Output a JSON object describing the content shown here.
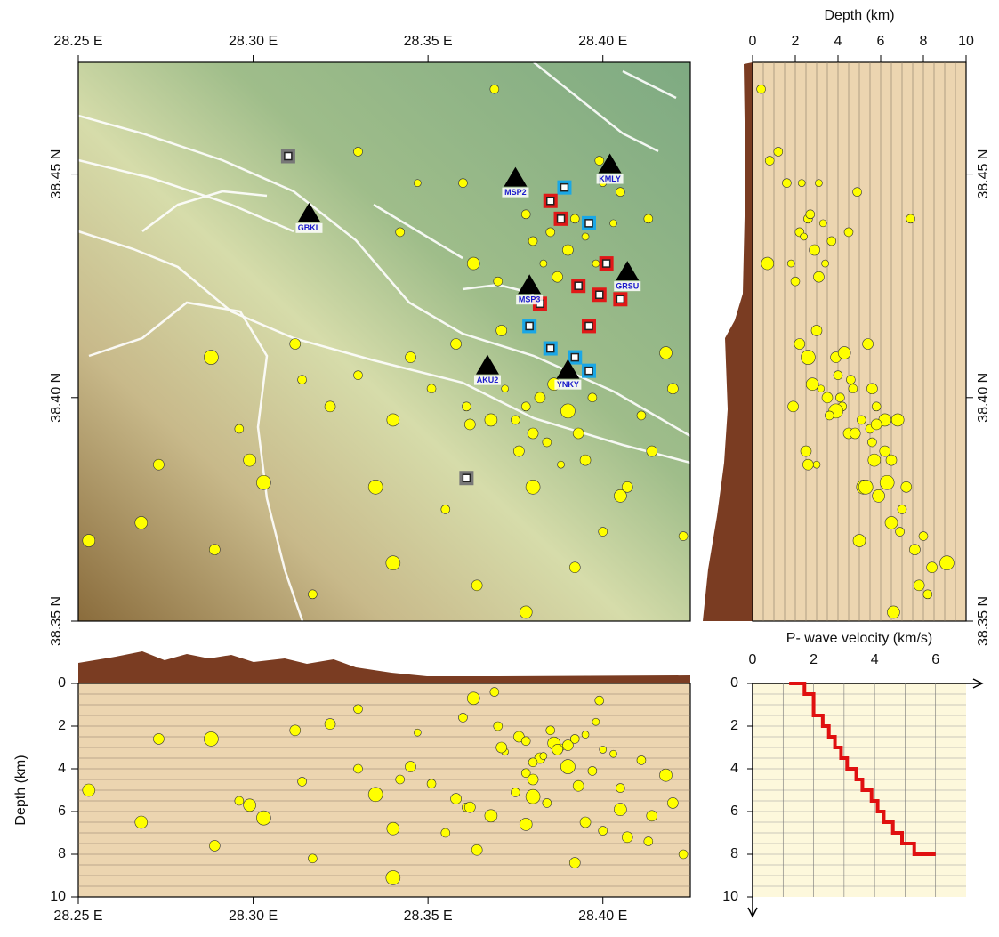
{
  "chart_data": [
    {
      "type": "map",
      "xlim": [
        28.25,
        28.425
      ],
      "ylim": [
        38.35,
        38.475
      ],
      "xticks": [
        {
          "value": 28.25,
          "label": "28.25 E"
        },
        {
          "value": 28.3,
          "label": "28.30 E"
        },
        {
          "value": 28.35,
          "label": "28.35 E"
        },
        {
          "value": 28.4,
          "label": "28.40 E"
        }
      ],
      "yticks": [
        {
          "value": 38.35,
          "label": "38.35 N"
        },
        {
          "value": 38.4,
          "label": "38.40 N"
        },
        {
          "value": 38.45,
          "label": "38.45 N"
        }
      ],
      "events": {
        "color": "#ffff00",
        "lon": [
          28.382,
          28.378,
          28.386,
          28.375,
          28.39,
          28.38,
          28.372,
          28.384,
          28.393,
          28.368,
          28.388,
          28.376,
          28.397,
          28.361,
          28.395,
          28.385,
          28.39,
          28.383,
          28.392,
          28.387,
          28.395,
          28.38,
          28.398,
          28.378,
          28.403,
          28.358,
          28.351,
          28.345,
          28.34,
          28.335,
          28.33,
          28.322,
          28.312,
          28.303,
          28.296,
          28.273,
          28.268,
          28.253,
          28.288,
          28.317,
          28.34,
          28.355,
          28.364,
          28.378,
          28.392,
          28.405,
          28.414,
          28.42,
          28.418,
          28.411,
          28.407,
          28.4,
          28.342,
          28.347,
          28.36,
          28.369,
          28.4,
          28.405,
          28.413,
          28.399,
          28.33,
          28.363,
          28.37,
          28.371,
          28.423,
          28.314,
          28.299,
          28.289,
          28.38,
          28.362
        ],
        "lat": [
          38.4,
          38.398,
          38.403,
          38.395,
          38.397,
          38.392,
          38.402,
          38.39,
          38.392,
          38.395,
          38.385,
          38.388,
          38.4,
          38.398,
          38.386,
          38.437,
          38.433,
          38.43,
          38.44,
          38.427,
          38.436,
          38.435,
          38.43,
          38.441,
          38.439,
          38.412,
          38.402,
          38.409,
          38.395,
          38.38,
          38.405,
          38.398,
          38.412,
          38.381,
          38.393,
          38.385,
          38.372,
          38.368,
          38.409,
          38.356,
          38.363,
          38.375,
          38.358,
          38.352,
          38.362,
          38.378,
          38.388,
          38.402,
          38.41,
          38.396,
          38.38,
          38.37,
          38.437,
          38.448,
          38.448,
          38.469,
          38.448,
          38.446,
          38.44,
          38.453,
          38.455,
          38.43,
          38.426,
          38.415,
          38.369,
          38.404,
          38.386,
          38.366,
          38.38,
          38.394
        ],
        "depth": [
          3.5,
          4.2,
          2.8,
          5.1,
          3.9,
          4.5,
          3.2,
          5.6,
          4.8,
          6.2,
          3.0,
          2.5,
          4.1,
          5.8,
          6.5,
          2.2,
          2.9,
          3.4,
          2.6,
          3.1,
          2.4,
          3.7,
          1.8,
          2.7,
          3.3,
          5.4,
          4.7,
          3.9,
          6.8,
          5.2,
          4.0,
          1.9,
          2.2,
          6.3,
          5.5,
          2.6,
          6.5,
          5.0,
          2.6,
          8.2,
          9.1,
          7.0,
          7.8,
          6.6,
          8.4,
          5.9,
          6.2,
          5.6,
          4.3,
          3.6,
          7.2,
          6.9,
          4.5,
          2.3,
          1.6,
          0.4,
          3.1,
          4.9,
          7.4,
          0.8,
          1.2,
          0.7,
          2.0,
          3.0,
          8.0,
          4.6,
          5.7,
          7.6,
          5.3,
          5.8
        ],
        "size": [
          6,
          5,
          7,
          5,
          8,
          6,
          4,
          5,
          6,
          7,
          4,
          6,
          5,
          5,
          6,
          5,
          6,
          4,
          5,
          6,
          4,
          5,
          4,
          5,
          4,
          6,
          5,
          6,
          7,
          8,
          5,
          6,
          6,
          8,
          5,
          6,
          7,
          7,
          8,
          5,
          8,
          5,
          6,
          7,
          6,
          7,
          6,
          6,
          7,
          5,
          6,
          5,
          5,
          4,
          5,
          5,
          4,
          5,
          5,
          5,
          5,
          7,
          5,
          6,
          5,
          5,
          7,
          6,
          8,
          6
        ]
      },
      "stations": {
        "names": [
          "MSP2",
          "KMLY",
          "GBKL",
          "MSP3",
          "GRSU",
          "AKU2",
          "YNKY"
        ],
        "lon": [
          28.375,
          28.402,
          28.316,
          28.379,
          28.407,
          28.367,
          28.39
        ],
        "lat": [
          38.449,
          38.452,
          38.441,
          38.425,
          38.428,
          38.407,
          38.406
        ]
      },
      "squares": [
        {
          "color": "#1aa7e6",
          "lon": [
            28.389,
            28.396,
            28.379,
            28.385,
            28.392,
            28.396
          ],
          "lat": [
            38.447,
            38.439,
            38.416,
            38.411,
            38.409,
            38.406
          ]
        },
        {
          "color": "#e01818",
          "lon": [
            28.385,
            28.388,
            28.401,
            28.393,
            28.399,
            28.405,
            28.396,
            28.382
          ],
          "lat": [
            38.444,
            38.44,
            38.43,
            38.425,
            38.423,
            38.422,
            38.416,
            38.421
          ]
        },
        {
          "color": "#777777",
          "lon": [
            28.31,
            28.361
          ],
          "lat": [
            38.454,
            38.382
          ]
        }
      ]
    },
    {
      "type": "section-lat",
      "title": "Depth (km)",
      "xlim": [
        0,
        10
      ],
      "xticks": [
        0,
        2,
        4,
        6,
        8,
        10
      ],
      "ylim": [
        38.35,
        38.475
      ],
      "yticks": [
        {
          "value": 38.35,
          "label": "38.35 N"
        },
        {
          "value": 38.4,
          "label": "38.40 N"
        },
        {
          "value": 38.45,
          "label": "38.45 N"
        }
      ],
      "grid": [
        0.5,
        1,
        1.5,
        2,
        2.5,
        3,
        3.5,
        4,
        4.5,
        5,
        5.5,
        6,
        6.5,
        7,
        7.5,
        8,
        8.5,
        9,
        9.5
      ]
    },
    {
      "type": "section-lon",
      "ylabel": "Depth (km)",
      "xlim": [
        28.25,
        28.425
      ],
      "xticks": [
        {
          "value": 28.25,
          "label": "28.25 E"
        },
        {
          "value": 28.3,
          "label": "28.30 E"
        },
        {
          "value": 28.35,
          "label": "28.35 E"
        },
        {
          "value": 28.4,
          "label": "28.40 E"
        }
      ],
      "ylim": [
        0,
        10
      ],
      "yticks": [
        0,
        2,
        4,
        6,
        8,
        10
      ],
      "grid": [
        0.5,
        1,
        1.5,
        2,
        2.5,
        3,
        3.5,
        4,
        4.5,
        5,
        5.5,
        6,
        6.5,
        7,
        7.5,
        8,
        8.5,
        9,
        9.5
      ]
    },
    {
      "type": "line",
      "title": "P- wave velocity (km/s)",
      "xlim": [
        0,
        7
      ],
      "xticks": [
        0,
        2,
        4,
        6
      ],
      "ylim": [
        0,
        10
      ],
      "yticks": [
        0,
        2,
        4,
        6,
        8,
        10
      ],
      "xgrid": [
        1,
        2,
        3,
        4,
        5,
        6
      ],
      "ygrid": [
        0.5,
        1,
        1.5,
        2,
        2.5,
        3,
        3.5,
        4,
        4.5,
        5,
        5.5,
        6,
        6.5,
        7,
        7.5,
        8,
        8.5,
        9,
        9.5
      ],
      "color": "#e01010",
      "x": [
        1.2,
        1.7,
        1.7,
        2.0,
        2.0,
        2.3,
        2.3,
        2.5,
        2.5,
        2.7,
        2.7,
        2.9,
        2.9,
        3.1,
        3.1,
        3.4,
        3.4,
        3.6,
        3.6,
        3.9,
        3.9,
        4.1,
        4.1,
        4.3,
        4.3,
        4.6,
        4.6,
        4.9,
        4.9,
        5.3,
        5.3,
        6.0
      ],
      "values": [
        0,
        0,
        0.5,
        0.5,
        1.5,
        1.5,
        2,
        2,
        2.5,
        2.5,
        3,
        3,
        3.5,
        3.5,
        4,
        4,
        4.5,
        4.5,
        5,
        5,
        5.5,
        5.5,
        6,
        6,
        6.5,
        6.5,
        7,
        7,
        7.5,
        7.5,
        8,
        8
      ]
    }
  ]
}
